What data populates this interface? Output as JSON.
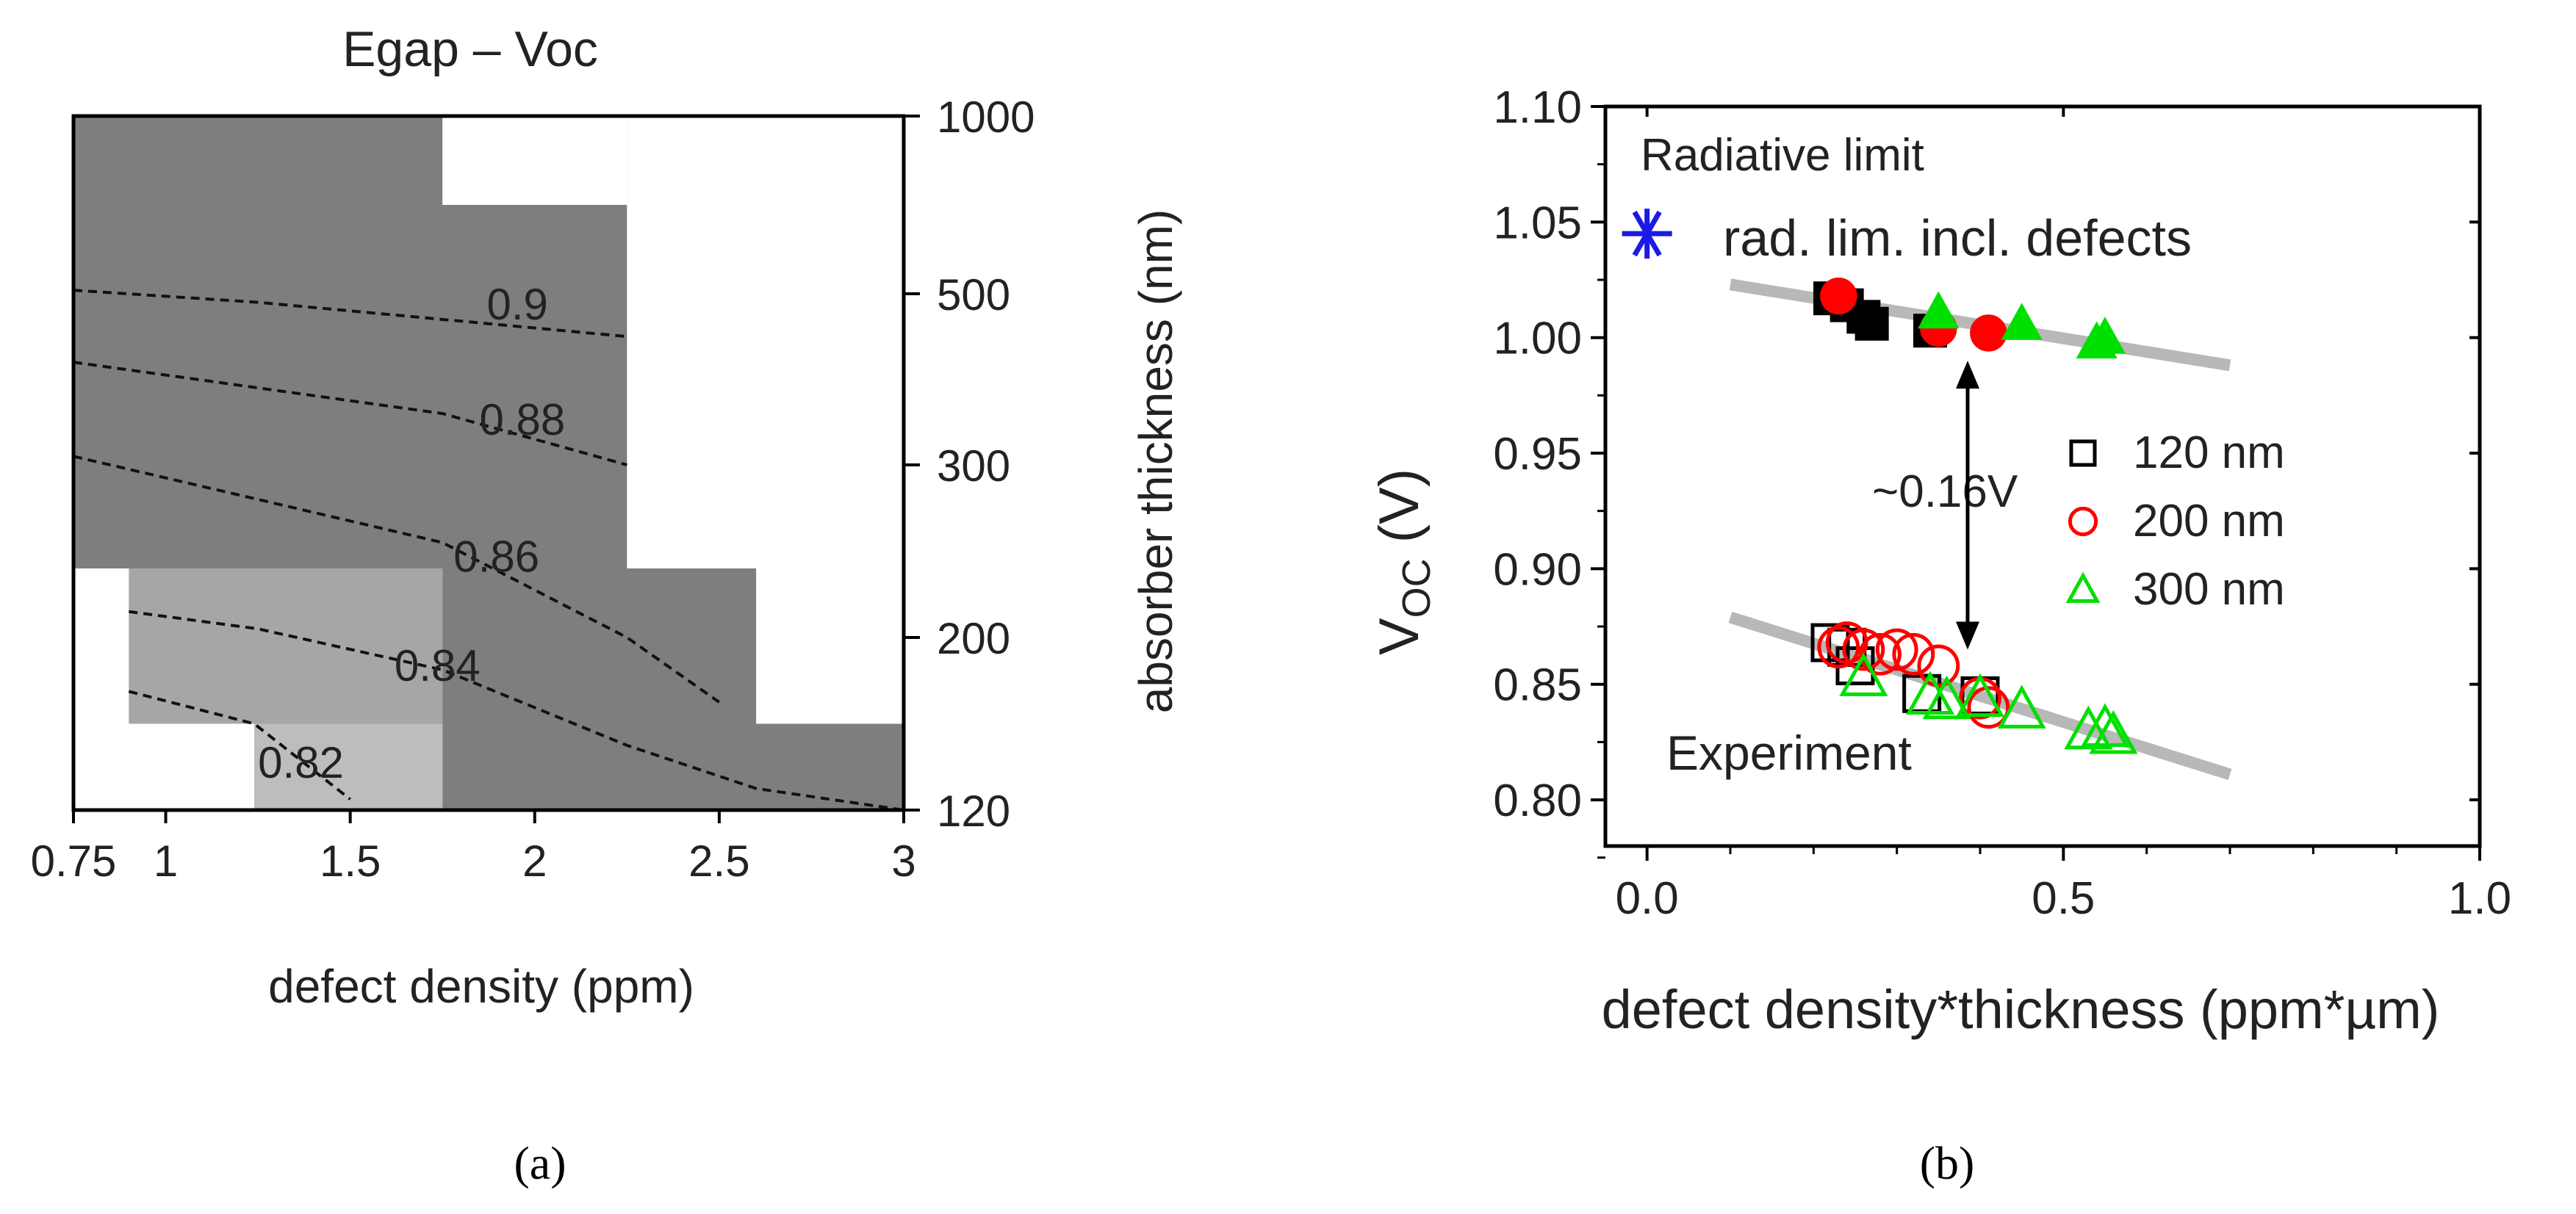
{
  "chart_data": [
    {
      "panel": "(a)",
      "type": "heatmap",
      "title": "Egap – Voc",
      "xlabel": "defect density (ppm)",
      "ylabel": "absorber thickness (nm)",
      "x_ticks": [
        "0.75",
        "1",
        "1.5",
        "2",
        "2.5",
        "3"
      ],
      "y_ticks": [
        "120",
        "200",
        "300",
        "500",
        "1000"
      ],
      "xlim": [
        0.75,
        3.0
      ],
      "y_scale": "categorical thickness levels",
      "cell_x_edges": [
        0.75,
        0.9,
        1.24,
        1.75,
        2.25,
        2.6,
        3.0
      ],
      "cell_y_edges_nm": [
        120,
        160,
        240,
        400,
        750,
        1000
      ],
      "cells": [
        {
          "x": [
            0.75,
            0.9
          ],
          "y": [
            120,
            240
          ],
          "shade": "none"
        },
        {
          "x": [
            0.9,
            1.24
          ],
          "y": [
            120,
            160
          ],
          "shade": "none"
        },
        {
          "x": [
            1.24,
            1.75
          ],
          "y": [
            120,
            160
          ],
          "shade": "#bdbdbd"
        },
        {
          "x": [
            0.9,
            1.24
          ],
          "y": [
            160,
            240
          ],
          "shade": "#a6a6a6"
        },
        {
          "x": [
            0.75,
            1.75
          ],
          "y": [
            240,
            1000
          ],
          "shade": "#7e7e7e"
        },
        {
          "x": [
            1.75,
            2.25
          ],
          "y": [
            750,
            1000
          ],
          "shade": "none"
        }
      ],
      "contours": [
        {
          "level": "0.9",
          "points": [
            [
              0.75,
              510
            ],
            [
              1.25,
              490
            ],
            [
              1.75,
              470
            ],
            [
              2.25,
              450
            ]
          ]
        },
        {
          "level": "0.88",
          "points": [
            [
              0.75,
              420
            ],
            [
              1.25,
              390
            ],
            [
              1.75,
              360
            ],
            [
              2.25,
              300
            ]
          ]
        },
        {
          "level": "0.86",
          "points": [
            [
              0.75,
              310
            ],
            [
              1.25,
              280
            ],
            [
              1.75,
              255
            ],
            [
              2.25,
              200
            ],
            [
              2.5,
              170
            ]
          ]
        },
        {
          "level": "0.84",
          "points": [
            [
              0.9,
              215
            ],
            [
              1.25,
              205
            ],
            [
              1.75,
              185
            ],
            [
              2.25,
              150
            ],
            [
              2.6,
              130
            ],
            [
              3.0,
              120
            ]
          ]
        },
        {
          "level": "0.82",
          "points": [
            [
              0.9,
              175
            ],
            [
              1.24,
              160
            ],
            [
              1.5,
              125
            ]
          ]
        }
      ],
      "fills": {
        "dark": "#7e7e7e",
        "mid": "#a6a6a6",
        "light": "#bdbdbd"
      }
    },
    {
      "panel": "(b)",
      "type": "scatter",
      "xlabel": "defect density*thickness (ppm*µm)",
      "ylabel": "V",
      "ylabel_sub": "OC",
      "ylabel_unit": " (V)",
      "xlim": [
        -0.05,
        1.0
      ],
      "ylim": [
        0.78,
        1.1
      ],
      "x_ticks": [
        "0.0",
        "0.5",
        "1.0"
      ],
      "y_ticks": [
        "0.80",
        "0.85",
        "0.90",
        "0.95",
        "1.00",
        "1.05",
        "1.10"
      ],
      "legend_position": "right",
      "annotations": {
        "radiative": "Radiative limit",
        "rad_lim": "rad. lim. incl. defects",
        "gap": "~0.16V",
        "experiment": "Experiment"
      },
      "radiative_limit_point": {
        "x": 0.0,
        "y": 1.045,
        "color": "#1a1ae6"
      },
      "fit_lines": [
        {
          "x": [
            0.1,
            0.7
          ],
          "y": [
            1.023,
            0.988
          ]
        },
        {
          "x": [
            0.1,
            0.7
          ],
          "y": [
            0.879,
            0.811
          ]
        }
      ],
      "arrow": {
        "x": 0.385,
        "y_from": 0.99,
        "y_to": 0.865
      },
      "series": [
        {
          "name": "120 nm",
          "marker": "square",
          "color": "#000000",
          "filled": [
            [
              0.22,
              1.017
            ],
            [
              0.24,
              1.014
            ],
            [
              0.26,
              1.009
            ],
            [
              0.27,
              1.006
            ],
            [
              0.34,
              1.003
            ]
          ],
          "open": [
            [
              0.22,
              0.868
            ],
            [
              0.24,
              0.866
            ],
            [
              0.25,
              0.858
            ],
            [
              0.33,
              0.846
            ],
            [
              0.4,
              0.845
            ]
          ]
        },
        {
          "name": "200 nm",
          "marker": "circle",
          "color": "#ff0000",
          "filled": [
            [
              0.23,
              1.018
            ],
            [
              0.35,
              1.004
            ],
            [
              0.41,
              1.002
            ]
          ],
          "open": [
            [
              0.23,
              0.866
            ],
            [
              0.24,
              0.868
            ],
            [
              0.26,
              0.865
            ],
            [
              0.28,
              0.863
            ],
            [
              0.3,
              0.865
            ],
            [
              0.32,
              0.863
            ],
            [
              0.35,
              0.858
            ],
            [
              0.4,
              0.844
            ],
            [
              0.41,
              0.84
            ]
          ]
        },
        {
          "name": "300 nm",
          "marker": "triangle",
          "color": "#00e000",
          "filled": [
            [
              0.35,
              1.011
            ],
            [
              0.45,
              1.006
            ],
            [
              0.54,
              0.998
            ],
            [
              0.55,
              1.0
            ]
          ],
          "open": [
            [
              0.26,
              0.853
            ],
            [
              0.34,
              0.845
            ],
            [
              0.36,
              0.843
            ],
            [
              0.4,
              0.844
            ],
            [
              0.45,
              0.839
            ],
            [
              0.53,
              0.83
            ],
            [
              0.55,
              0.831
            ],
            [
              0.56,
              0.828
            ]
          ]
        }
      ],
      "fit_line_color": "#b8b8b8"
    }
  ],
  "captions": {
    "a": "(a)",
    "b": "(b)"
  }
}
